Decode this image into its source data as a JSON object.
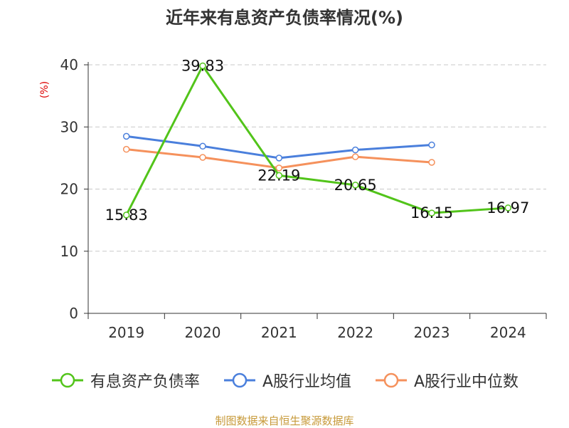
{
  "chart_data": {
    "type": "line",
    "title": "近年来有息资产负债率情况(%)",
    "ylabel": "(%)",
    "xlabel": "",
    "categories": [
      "2019",
      "2020",
      "2021",
      "2022",
      "2023",
      "2024"
    ],
    "ylim": [
      0,
      40
    ],
    "yticks": [
      0,
      10,
      20,
      30,
      40
    ],
    "grid": true,
    "legend_position": "bottom",
    "series": [
      {
        "name": "有息资产负债率",
        "color": "#52c41a",
        "values": [
          15.83,
          39.83,
          22.19,
          20.65,
          16.15,
          16.97
        ],
        "data_labels": [
          "15.83",
          "39.83",
          "22.19",
          "20.65",
          "16.15",
          "16.97"
        ]
      },
      {
        "name": "A股行业均值",
        "color": "#4a7fdc",
        "values": [
          28.5,
          26.9,
          25.0,
          26.3,
          27.1,
          null
        ],
        "data_labels": []
      },
      {
        "name": "A股行业中位数",
        "color": "#f5915c",
        "values": [
          26.4,
          25.1,
          23.4,
          25.2,
          24.3,
          null
        ],
        "data_labels": []
      }
    ]
  },
  "source": "制图数据来自恒生聚源数据库"
}
